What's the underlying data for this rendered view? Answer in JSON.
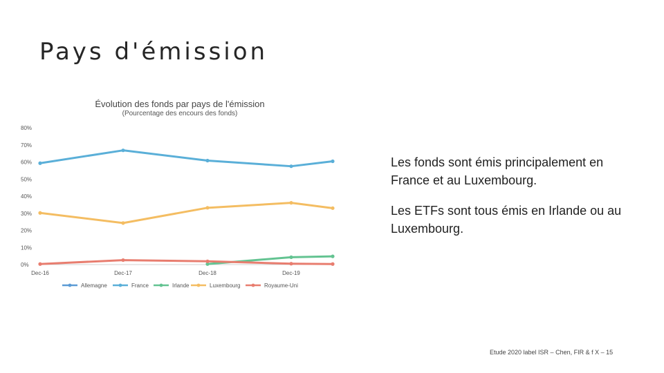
{
  "slide": {
    "title": "Pays d'émission",
    "bullets": [
      "Les fonds sont émis principalement en France et au Luxembourg.",
      "Les ETFs sont tous émis en Irlande ou au Luxembourg."
    ],
    "footer": "Etude 2020 label ISR – Chen, FIR & f X – 15"
  },
  "chart_data": {
    "type": "line",
    "title": "Évolution des fonds par pays de l'émission",
    "subtitle": "(Pourcentage des encours des fonds)",
    "x": [
      "Dec-16",
      "Dec-17",
      "Dec-18",
      "Dec-19",
      ""
    ],
    "tick_labels": [
      "Dec-16",
      "Dec-17",
      "Dec-18",
      "Dec-19"
    ],
    "y_tick_labels": [
      "0%",
      "10%",
      "20%",
      "30%",
      "40%",
      "50%",
      "60%",
      "70%",
      "80%"
    ],
    "ylim": [
      0,
      80
    ],
    "grid": false,
    "legend_position": "bottom",
    "series": [
      {
        "name": "Allemagne",
        "color": "#5b9bd5",
        "values": [
          null,
          null,
          null,
          null,
          null
        ]
      },
      {
        "name": "France",
        "color": "#5aafd8",
        "values": [
          59.3,
          66.8,
          60.8,
          57.5,
          60.4
        ]
      },
      {
        "name": "Irlande",
        "color": "#63c391",
        "values": [
          null,
          null,
          0.3,
          4.3,
          4.8
        ]
      },
      {
        "name": "Luxembourg",
        "color": "#f4bd62",
        "values": [
          30.2,
          24.3,
          33.2,
          36.1,
          33.0
        ]
      },
      {
        "name": "Royaume-Uni",
        "color": "#e87d6f",
        "values": [
          0.3,
          2.6,
          1.9,
          0.5,
          0.3
        ]
      }
    ]
  }
}
